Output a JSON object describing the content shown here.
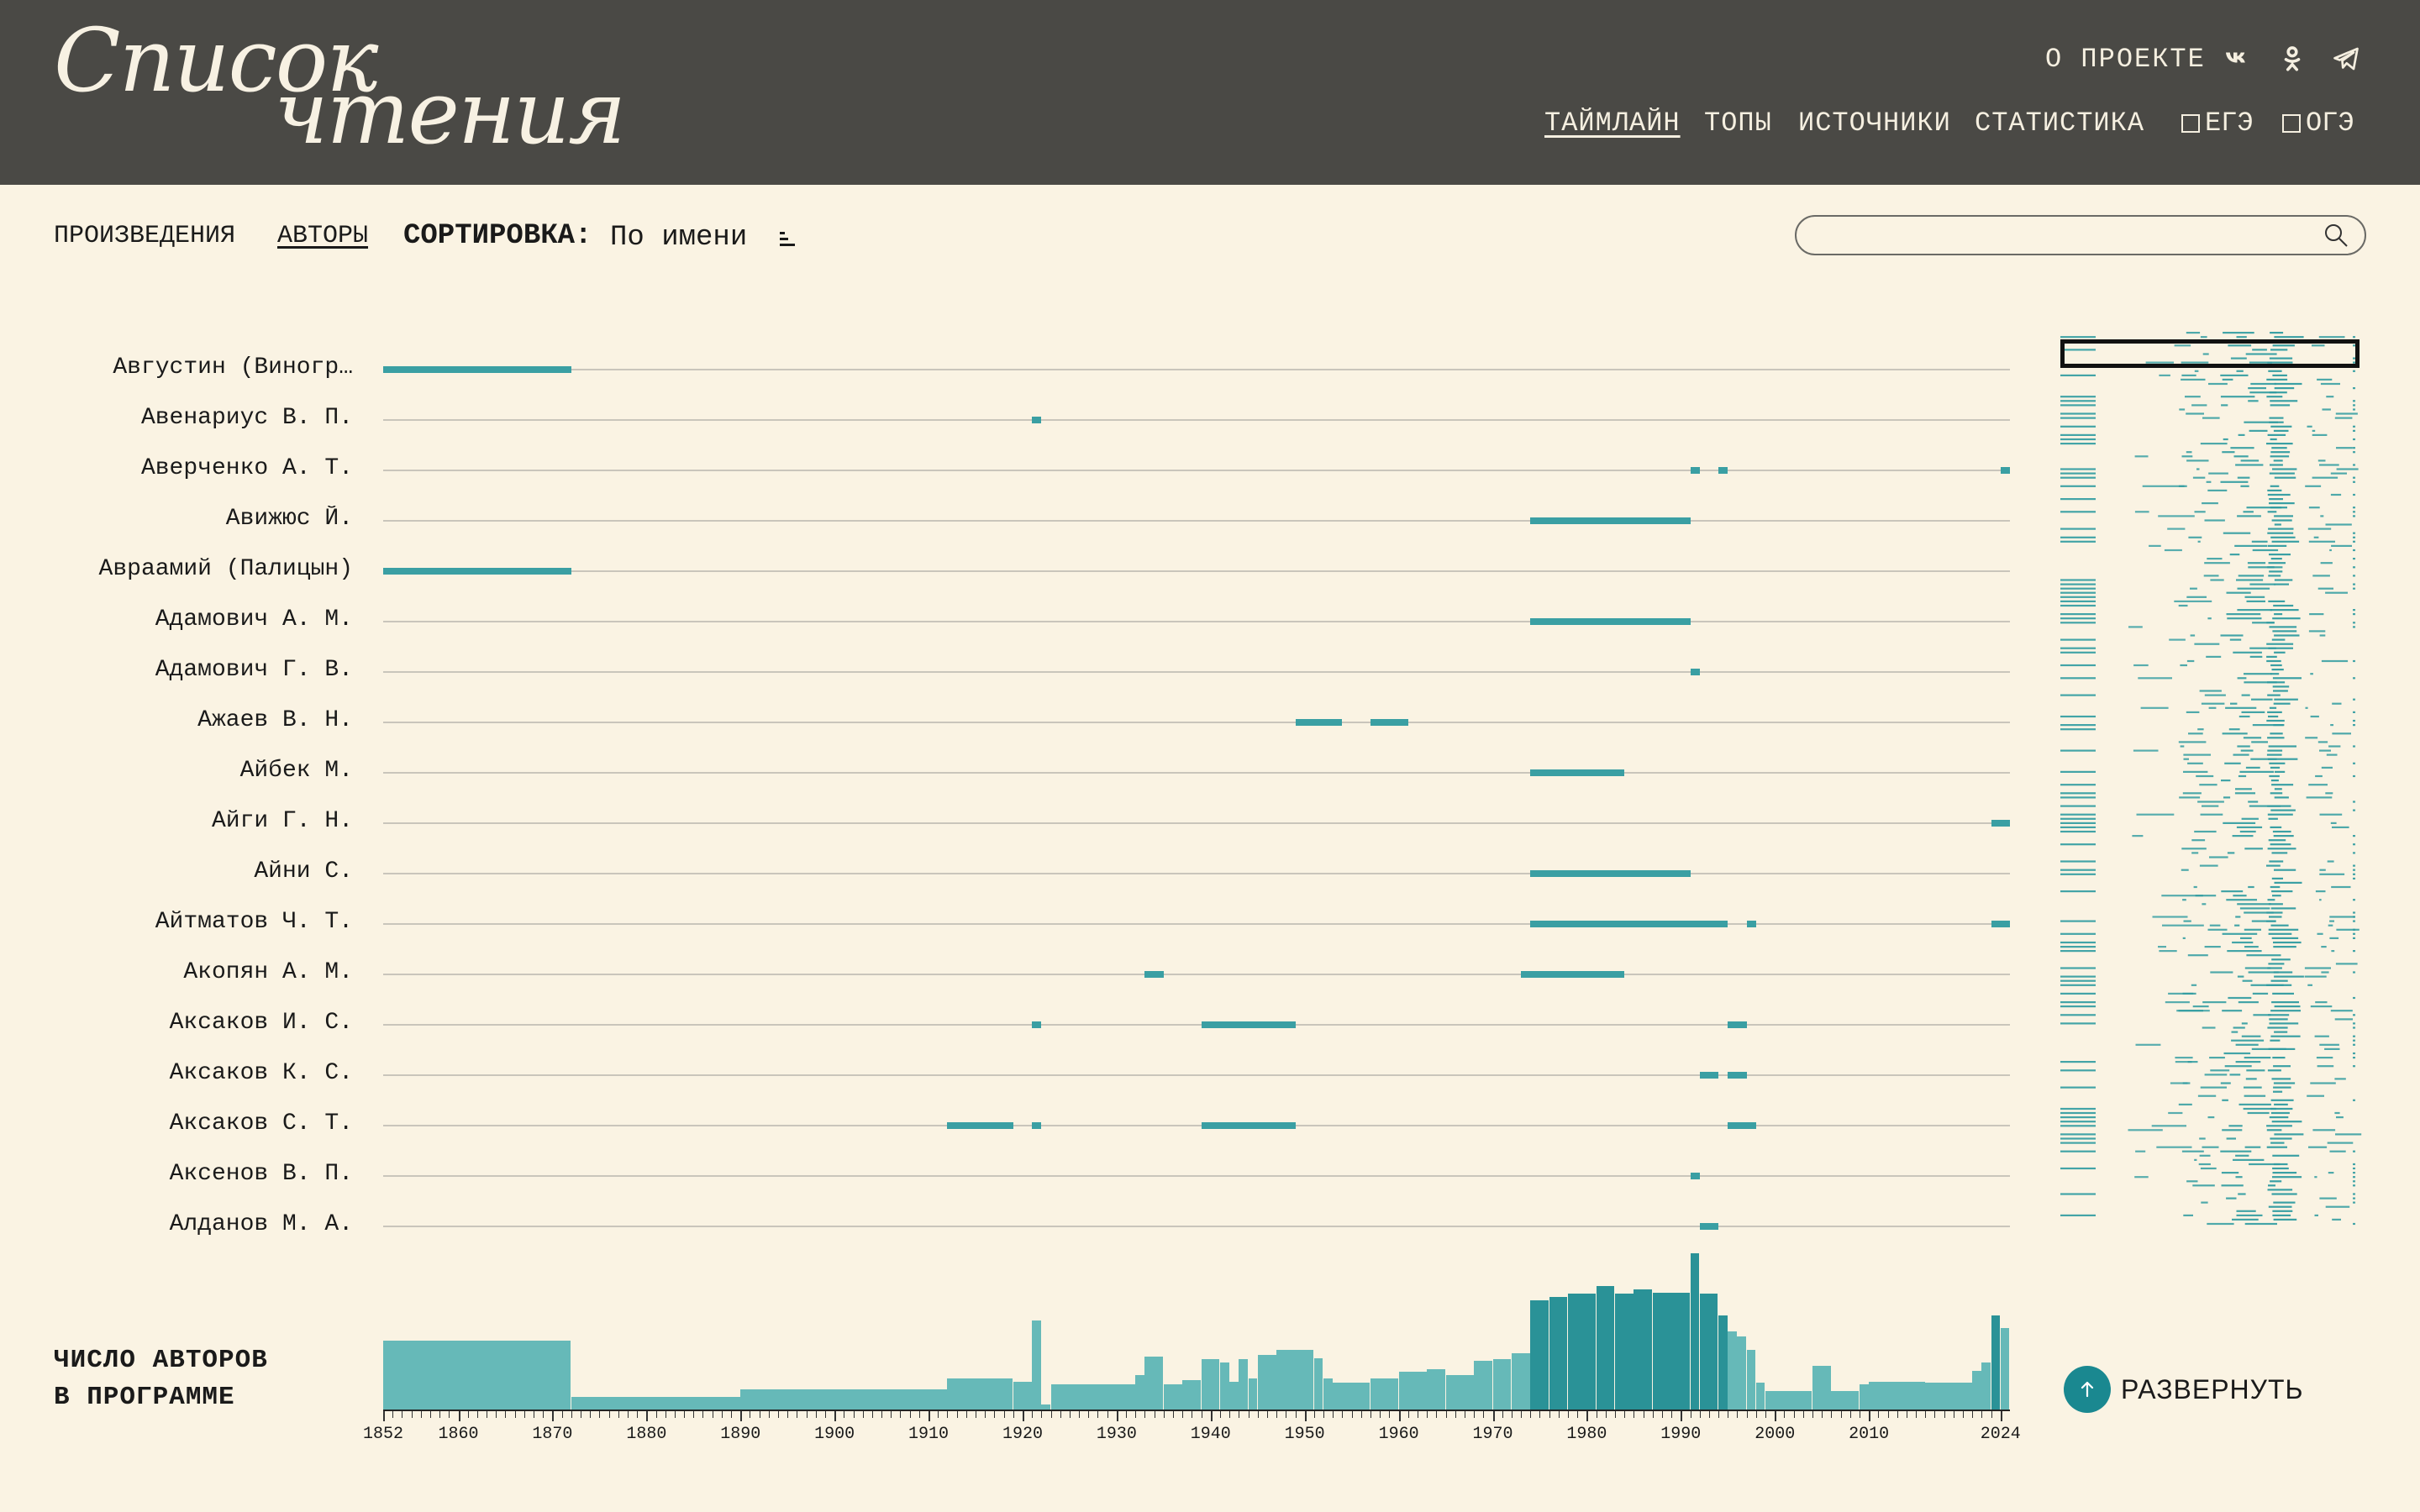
{
  "header": {
    "logo_line1": "Список",
    "logo_line2": "чтения",
    "about": "О ПРОЕКТЕ",
    "social_icons": [
      "vk-icon",
      "ok-icon",
      "telegram-icon"
    ],
    "nav": [
      {
        "label": "ТАЙМЛАЙН",
        "active": true
      },
      {
        "label": "ТОПЫ",
        "active": false
      },
      {
        "label": "ИСТОЧНИКИ",
        "active": false
      },
      {
        "label": "СТАТИСТИКА",
        "active": false
      }
    ],
    "filters": [
      {
        "label": "ЕГЭ",
        "checked": false
      },
      {
        "label": "ОГЭ",
        "checked": false
      }
    ]
  },
  "controls": {
    "works": "ПРОИЗВЕДЕНИЯ",
    "authors": "АВТОРЫ",
    "sort_label": "СОРТИРОВКА:",
    "sort_value": "По имени",
    "search_value": ""
  },
  "colors": {
    "header_bg": "#4a4945",
    "page_bg": "#faf3e3",
    "accent": "#3a9fa3",
    "button": "#1a8890"
  },
  "timeline": {
    "year_start": 1852,
    "year_end": 2024,
    "rows": [
      {
        "name": "Августин (Виногр…",
        "spans": [
          [
            1852,
            1871
          ]
        ]
      },
      {
        "name": "Авенариус В. П.",
        "spans": [
          [
            1921,
            1921
          ]
        ]
      },
      {
        "name": "Аверченко А. Т.",
        "spans": [
          [
            1991,
            1991
          ],
          [
            1994,
            1994
          ],
          [
            2024,
            2024
          ]
        ]
      },
      {
        "name": "Авижюс Й.",
        "spans": [
          [
            1974,
            1990
          ]
        ]
      },
      {
        "name": "Авраамий (Палицын)",
        "spans": [
          [
            1852,
            1871
          ]
        ]
      },
      {
        "name": "Адамович А. М.",
        "spans": [
          [
            1974,
            1990
          ]
        ]
      },
      {
        "name": "Адамович Г. В.",
        "spans": [
          [
            1991,
            1991
          ]
        ]
      },
      {
        "name": "Ажаев В. Н.",
        "spans": [
          [
            1949,
            1953
          ],
          [
            1957,
            1960
          ]
        ]
      },
      {
        "name": "Айбек М.",
        "spans": [
          [
            1974,
            1983
          ]
        ]
      },
      {
        "name": "Айги Г. Н.",
        "spans": [
          [
            2023,
            2024
          ]
        ]
      },
      {
        "name": "Айни С.",
        "spans": [
          [
            1974,
            1990
          ]
        ]
      },
      {
        "name": "Айтматов Ч. Т.",
        "spans": [
          [
            1974,
            1994
          ],
          [
            1997,
            1997
          ],
          [
            2023,
            2024
          ]
        ]
      },
      {
        "name": "Акопян А. М.",
        "spans": [
          [
            1933,
            1934
          ],
          [
            1973,
            1983
          ]
        ]
      },
      {
        "name": "Аксаков И. С.",
        "spans": [
          [
            1921,
            1921
          ],
          [
            1939,
            1948
          ],
          [
            1995,
            1996
          ]
        ]
      },
      {
        "name": "Аксаков К. С.",
        "spans": [
          [
            1992,
            1993
          ],
          [
            1995,
            1996
          ]
        ]
      },
      {
        "name": "Аксаков С. Т.",
        "spans": [
          [
            1912,
            1918
          ],
          [
            1921,
            1921
          ],
          [
            1939,
            1948
          ],
          [
            1995,
            1997
          ]
        ]
      },
      {
        "name": "Аксенов В. П.",
        "spans": [
          [
            1991,
            1991
          ]
        ]
      },
      {
        "name": "Алданов М. А.",
        "spans": [
          [
            1992,
            1993
          ]
        ]
      }
    ]
  },
  "histogram": {
    "label_line1": "ЧИСЛО АВТОРОВ",
    "label_line2": "В ПРОГРАММЕ",
    "tick_labels": [
      "1852",
      "1860",
      "1870",
      "1880",
      "1890",
      "1900",
      "1910",
      "1920",
      "1930",
      "1940",
      "1950",
      "1960",
      "1970",
      "1980",
      "1990",
      "2000",
      "2010",
      "2024"
    ],
    "max_value": 100,
    "values": [
      {
        "from": 1852,
        "to": 1871,
        "v": 44
      },
      {
        "from": 1872,
        "to": 1889,
        "v": 8
      },
      {
        "from": 1890,
        "to": 1911,
        "v": 13
      },
      {
        "from": 1912,
        "to": 1918,
        "v": 20
      },
      {
        "from": 1919,
        "to": 1920,
        "v": 18
      },
      {
        "from": 1921,
        "to": 1921,
        "v": 57
      },
      {
        "from": 1922,
        "to": 1922,
        "v": 3
      },
      {
        "from": 1923,
        "to": 1931,
        "v": 16
      },
      {
        "from": 1932,
        "to": 1932,
        "v": 22
      },
      {
        "from": 1933,
        "to": 1934,
        "v": 34
      },
      {
        "from": 1935,
        "to": 1936,
        "v": 16
      },
      {
        "from": 1937,
        "to": 1938,
        "v": 19
      },
      {
        "from": 1939,
        "to": 1940,
        "v": 32
      },
      {
        "from": 1941,
        "to": 1941,
        "v": 30
      },
      {
        "from": 1942,
        "to": 1942,
        "v": 18
      },
      {
        "from": 1943,
        "to": 1943,
        "v": 32
      },
      {
        "from": 1944,
        "to": 1944,
        "v": 20
      },
      {
        "from": 1945,
        "to": 1946,
        "v": 35
      },
      {
        "from": 1947,
        "to": 1950,
        "v": 38
      },
      {
        "from": 1951,
        "to": 1951,
        "v": 33
      },
      {
        "from": 1952,
        "to": 1952,
        "v": 20
      },
      {
        "from": 1953,
        "to": 1956,
        "v": 17
      },
      {
        "from": 1957,
        "to": 1959,
        "v": 20
      },
      {
        "from": 1960,
        "to": 1962,
        "v": 24
      },
      {
        "from": 1963,
        "to": 1964,
        "v": 26
      },
      {
        "from": 1965,
        "to": 1967,
        "v": 22
      },
      {
        "from": 1968,
        "to": 1969,
        "v": 31
      },
      {
        "from": 1970,
        "to": 1971,
        "v": 32
      },
      {
        "from": 1972,
        "to": 1973,
        "v": 36
      },
      {
        "from": 1974,
        "to": 1975,
        "v": 70
      },
      {
        "from": 1976,
        "to": 1977,
        "v": 72
      },
      {
        "from": 1978,
        "to": 1980,
        "v": 74
      },
      {
        "from": 1981,
        "to": 1982,
        "v": 79
      },
      {
        "from": 1983,
        "to": 1984,
        "v": 74
      },
      {
        "from": 1985,
        "to": 1986,
        "v": 77
      },
      {
        "from": 1987,
        "to": 1988,
        "v": 75
      },
      {
        "from": 1989,
        "to": 1990,
        "v": 75
      },
      {
        "from": 1991,
        "to": 1991,
        "v": 100
      },
      {
        "from": 1992,
        "to": 1993,
        "v": 74
      },
      {
        "from": 1994,
        "to": 1994,
        "v": 60
      },
      {
        "from": 1995,
        "to": 1995,
        "v": 50
      },
      {
        "from": 1996,
        "to": 1996,
        "v": 47
      },
      {
        "from": 1997,
        "to": 1997,
        "v": 38
      },
      {
        "from": 1998,
        "to": 1998,
        "v": 17
      },
      {
        "from": 1999,
        "to": 2003,
        "v": 12
      },
      {
        "from": 2004,
        "to": 2005,
        "v": 28
      },
      {
        "from": 2006,
        "to": 2008,
        "v": 12
      },
      {
        "from": 2009,
        "to": 2009,
        "v": 16
      },
      {
        "from": 2010,
        "to": 2015,
        "v": 18
      },
      {
        "from": 2016,
        "to": 2020,
        "v": 17
      },
      {
        "from": 2021,
        "to": 2021,
        "v": 25
      },
      {
        "from": 2022,
        "to": 2022,
        "v": 30
      },
      {
        "from": 2023,
        "to": 2023,
        "v": 60
      },
      {
        "from": 2024,
        "to": 2024,
        "v": 52
      }
    ]
  },
  "expand": {
    "label": "РАЗВЕРНУТЬ",
    "icon": "arrow-up-icon"
  }
}
